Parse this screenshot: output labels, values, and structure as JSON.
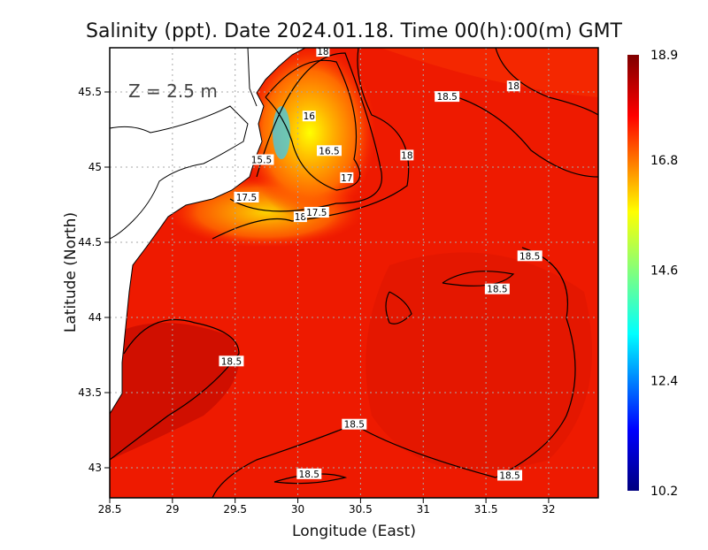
{
  "chart_data": {
    "type": "heatmap",
    "title": "Salinity (ppt). Date 2024.01.18. Time 00(h):00(m) GMT",
    "annotation": "Z = 2.5 m",
    "xlabel": "Longitude (East)",
    "ylabel": "Latitude (North)",
    "xlim": [
      28.5,
      32.4
    ],
    "ylim": [
      42.8,
      45.79
    ],
    "xticks": [
      "28.5",
      "29",
      "29.5",
      "30",
      "30.5",
      "31",
      "31.5",
      "32"
    ],
    "yticks": [
      "43",
      "43.5",
      "44",
      "44.5",
      "45",
      "45.5"
    ],
    "grid": true,
    "colorbar": {
      "ticks": [
        "10.2",
        "12.4",
        "14.6",
        "16.8",
        "18.9"
      ],
      "min": 10.2,
      "max": 18.9,
      "colormap": "jet"
    },
    "contour_labels": [
      {
        "value": "18",
        "lon": 30.2,
        "lat": 45.77
      },
      {
        "value": "18.5",
        "lon": 31.19,
        "lat": 45.47
      },
      {
        "value": "18",
        "lon": 31.72,
        "lat": 45.54
      },
      {
        "value": "16",
        "lon": 30.09,
        "lat": 45.34
      },
      {
        "value": "16.5",
        "lon": 30.25,
        "lat": 45.11
      },
      {
        "value": "18",
        "lon": 30.87,
        "lat": 45.08
      },
      {
        "value": "15.5",
        "lon": 29.71,
        "lat": 45.05
      },
      {
        "value": "17",
        "lon": 30.39,
        "lat": 44.93
      },
      {
        "value": "17.5",
        "lon": 29.59,
        "lat": 44.8
      },
      {
        "value": "18",
        "lon": 30.02,
        "lat": 44.67
      },
      {
        "value": "17.5",
        "lon": 30.15,
        "lat": 44.7
      },
      {
        "value": "18.5",
        "lon": 31.85,
        "lat": 44.41
      },
      {
        "value": "18.5",
        "lon": 31.59,
        "lat": 44.19
      },
      {
        "value": "18.5",
        "lon": 29.47,
        "lat": 43.71
      },
      {
        "value": "18.5",
        "lon": 30.45,
        "lat": 43.29
      },
      {
        "value": "18.5",
        "lon": 30.09,
        "lat": 42.96
      },
      {
        "value": "18.5",
        "lon": 31.69,
        "lat": 42.95
      }
    ]
  }
}
